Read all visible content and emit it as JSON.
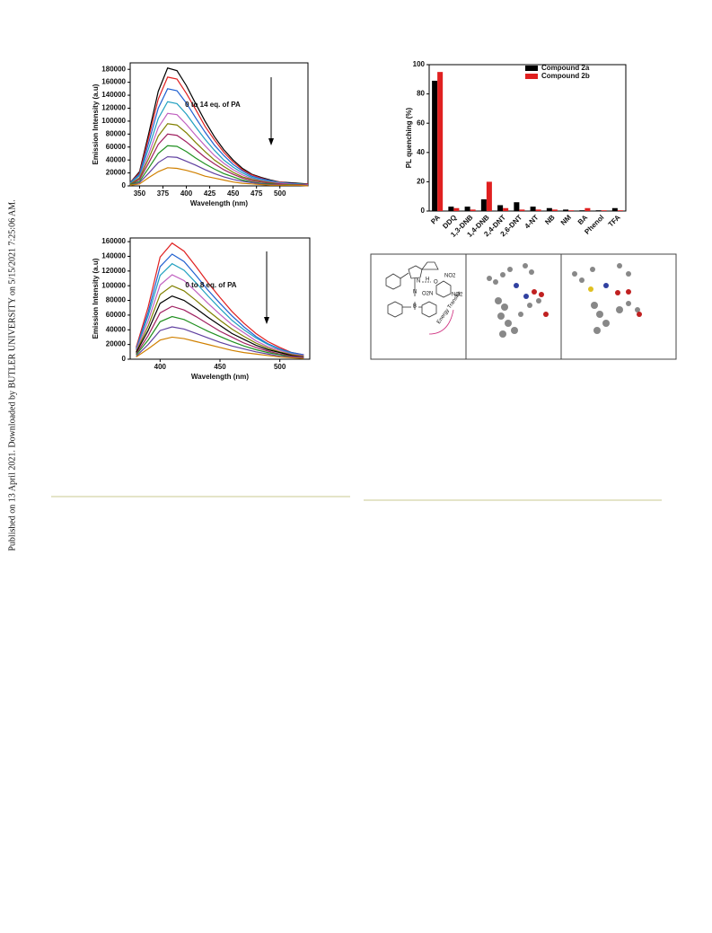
{
  "sidebar": "Published on 13 April 2021. Downloaded by BUTLER UNIVERSITY on 5/15/2021 7:25:06 AM.",
  "diagram": {
    "labels": [
      "NO2",
      "O",
      "H",
      "N",
      "N",
      "B",
      "O2N",
      "NO2",
      "Energy Transfer"
    ]
  },
  "chart_data": [
    {
      "type": "line",
      "xlabel": "Wavelength (nm)",
      "ylabel": "Emission Intensity (a.u)",
      "annotation": "0 to 14 eq. of PA",
      "x": [
        340,
        350,
        360,
        370,
        380,
        390,
        400,
        410,
        420,
        430,
        440,
        450,
        460,
        470,
        480,
        490,
        500,
        510,
        520,
        530
      ],
      "xlim": [
        340,
        530
      ],
      "xticks": [
        350,
        375,
        400,
        425,
        450,
        475,
        500
      ],
      "ylim": [
        0,
        190000
      ],
      "yticks": [
        0,
        20000,
        40000,
        60000,
        80000,
        100000,
        120000,
        140000,
        160000,
        180000
      ],
      "series": [
        {
          "color": "#000000",
          "values": [
            5000,
            22000,
            82000,
            146000,
            182000,
            178000,
            155000,
            127000,
            100000,
            76000,
            56000,
            40000,
            27000,
            18000,
            13000,
            9000,
            6000,
            5000,
            4000,
            3000
          ]
        },
        {
          "color": "#e02020",
          "values": [
            5000,
            20000,
            76000,
            134000,
            168000,
            165000,
            143000,
            118000,
            92000,
            71000,
            52000,
            37000,
            25000,
            17000,
            12000,
            8000,
            6000,
            4000,
            3000,
            3000
          ]
        },
        {
          "color": "#2060d0",
          "values": [
            5000,
            18000,
            68000,
            120000,
            150000,
            147000,
            128000,
            105000,
            83000,
            63000,
            47000,
            33000,
            23000,
            15000,
            11000,
            8000,
            5000,
            4000,
            3000,
            2000
          ]
        },
        {
          "color": "#20a0c0",
          "values": [
            4000,
            16000,
            59000,
            104000,
            130000,
            127000,
            111000,
            91000,
            72000,
            55000,
            40000,
            29000,
            20000,
            13000,
            9000,
            7000,
            5000,
            3000,
            3000,
            2000
          ]
        },
        {
          "color": "#c060c0",
          "values": [
            3000,
            13000,
            50000,
            90000,
            112000,
            110000,
            95000,
            78000,
            62000,
            47000,
            35000,
            25000,
            17000,
            11000,
            8000,
            6000,
            4000,
            3000,
            2000,
            2000
          ]
        },
        {
          "color": "#808000",
          "values": [
            3000,
            12000,
            43000,
            77000,
            96000,
            94000,
            82000,
            67000,
            53000,
            40000,
            30000,
            21000,
            14000,
            10000,
            7000,
            5000,
            3000,
            2000,
            2000,
            1000
          ]
        },
        {
          "color": "#a02060",
          "values": [
            2000,
            10000,
            36000,
            64000,
            80000,
            78000,
            68000,
            56000,
            44000,
            34000,
            25000,
            18000,
            12000,
            8000,
            6000,
            4000,
            3000,
            2000,
            2000,
            1000
          ]
        },
        {
          "color": "#209020",
          "values": [
            2000,
            7000,
            28000,
            50000,
            62000,
            61000,
            53000,
            43000,
            34000,
            26000,
            19000,
            14000,
            9000,
            6000,
            4000,
            3000,
            2000,
            2000,
            1000,
            1000
          ]
        },
        {
          "color": "#6040a0",
          "values": [
            1000,
            5000,
            20000,
            36000,
            45000,
            44000,
            38000,
            32000,
            25000,
            19000,
            14000,
            10000,
            7000,
            5000,
            3000,
            2000,
            2000,
            1000,
            1000,
            1000
          ]
        },
        {
          "color": "#d08000",
          "values": [
            1000,
            3000,
            13000,
            22000,
            28000,
            27000,
            24000,
            20000,
            15000,
            12000,
            9000,
            6000,
            4000,
            3000,
            2000,
            1000,
            1000,
            1000,
            1000,
            0
          ]
        }
      ]
    },
    {
      "type": "line",
      "xlabel": "Wavelength (nm)",
      "ylabel": "Emission Intensity (a.u)",
      "annotation": "0 to 8 eq. of PA",
      "x": [
        380,
        390,
        400,
        410,
        420,
        430,
        440,
        450,
        460,
        470,
        480,
        490,
        500,
        510,
        520
      ],
      "xlim": [
        375,
        525
      ],
      "xticks": [
        400,
        450,
        500
      ],
      "ylim": [
        0,
        165000
      ],
      "yticks": [
        0,
        20000,
        40000,
        60000,
        80000,
        100000,
        120000,
        140000,
        160000
      ],
      "series": [
        {
          "color": "#e02020",
          "values": [
            16000,
            71000,
            139000,
            158000,
            147000,
            126000,
            104000,
            84000,
            65000,
            49000,
            35000,
            24000,
            16000,
            9000,
            6000
          ]
        },
        {
          "color": "#2060d0",
          "values": [
            14000,
            64000,
            126000,
            143000,
            133000,
            114000,
            94000,
            76000,
            59000,
            44000,
            31000,
            21000,
            14000,
            9000,
            6000
          ]
        },
        {
          "color": "#20a0c0",
          "values": [
            13000,
            59000,
            114000,
            130000,
            121000,
            104000,
            86000,
            69000,
            53000,
            40000,
            29000,
            20000,
            13000,
            8000,
            5000
          ]
        },
        {
          "color": "#c060c0",
          "values": [
            12000,
            52000,
            101000,
            115000,
            107000,
            92000,
            76000,
            61000,
            47000,
            36000,
            25000,
            17000,
            12000,
            7000,
            5000
          ]
        },
        {
          "color": "#808000",
          "values": [
            10000,
            45000,
            88000,
            100000,
            93000,
            80000,
            66000,
            53000,
            41000,
            31000,
            22000,
            15000,
            10000,
            6000,
            4000
          ]
        },
        {
          "color": "#000000",
          "values": [
            9000,
            39000,
            76000,
            86000,
            80000,
            69000,
            57000,
            46000,
            35000,
            27000,
            19000,
            13000,
            9000,
            5000,
            3000
          ]
        },
        {
          "color": "#a02060",
          "values": [
            7000,
            32000,
            63000,
            72000,
            67000,
            58000,
            48000,
            38000,
            30000,
            22000,
            16000,
            11000,
            7000,
            4000,
            3000
          ]
        },
        {
          "color": "#209020",
          "values": [
            6000,
            26000,
            51000,
            58000,
            54000,
            46000,
            38000,
            31000,
            24000,
            18000,
            13000,
            9000,
            6000,
            3000,
            2000
          ]
        },
        {
          "color": "#6040a0",
          "values": [
            4000,
            20000,
            39000,
            44000,
            41000,
            35000,
            29000,
            23000,
            18000,
            14000,
            10000,
            7000,
            4000,
            3000,
            2000
          ]
        },
        {
          "color": "#d08000",
          "values": [
            3000,
            14000,
            26000,
            30000,
            28000,
            24000,
            20000,
            16000,
            12000,
            9000,
            7000,
            5000,
            3000,
            2000,
            1000
          ]
        }
      ]
    },
    {
      "type": "bar",
      "ylabel": "PL quenching (%)",
      "categories": [
        "PA",
        "DDQ",
        "1,3-DNB",
        "1,4-DNB",
        "2,4-DNT",
        "2,6-DNT",
        "4-NT",
        "NB",
        "NM",
        "BA",
        "Phenol",
        "TFA"
      ],
      "ylim": [
        0,
        100
      ],
      "yticks": [
        0,
        20,
        40,
        60,
        80,
        100
      ],
      "legend": "top-right",
      "series": [
        {
          "name": "Compound 2a",
          "color": "#000000",
          "values": [
            89,
            3,
            3,
            8,
            4,
            6,
            3,
            2,
            1,
            0.5,
            0.5,
            2
          ]
        },
        {
          "name": "Compound 2b",
          "color": "#e02020",
          "values": [
            95,
            2,
            1,
            20,
            2,
            1,
            1,
            1,
            0.5,
            2,
            0.5,
            0.5
          ]
        }
      ]
    }
  ]
}
